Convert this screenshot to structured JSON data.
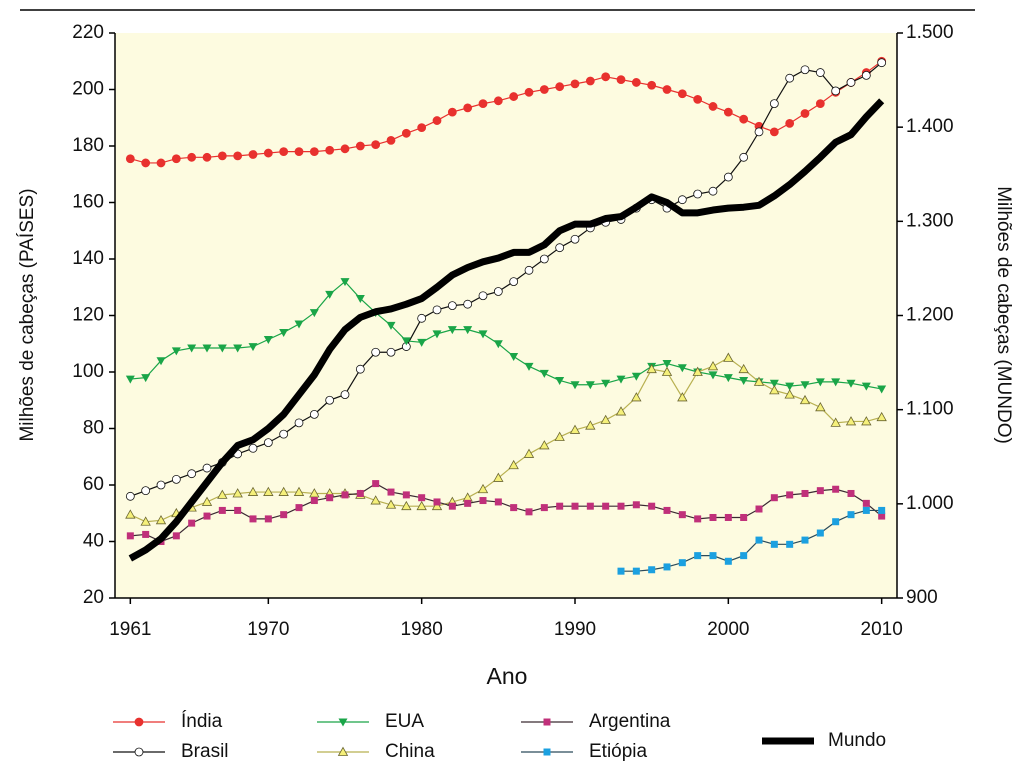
{
  "chart_data": {
    "type": "line",
    "x_label": "Ano",
    "y_label": "Milhões de cabeças (PAÍSES)",
    "y2_label": "Milhões de cabeças (MUNDO)",
    "x": [
      1961,
      1962,
      1963,
      1964,
      1965,
      1966,
      1967,
      1968,
      1969,
      1970,
      1971,
      1972,
      1973,
      1974,
      1975,
      1976,
      1977,
      1978,
      1979,
      1980,
      1981,
      1982,
      1983,
      1984,
      1985,
      1986,
      1987,
      1988,
      1989,
      1990,
      1991,
      1992,
      1993,
      1994,
      1995,
      1996,
      1997,
      1998,
      1999,
      2000,
      2001,
      2002,
      2003,
      2004,
      2005,
      2006,
      2007,
      2008,
      2009,
      2010
    ],
    "xlim": [
      1960,
      2011
    ],
    "xticks": [
      1961,
      1970,
      1980,
      1990,
      2000,
      2010
    ],
    "ylim": [
      20,
      220
    ],
    "yticks": [
      20,
      40,
      60,
      80,
      100,
      120,
      140,
      160,
      180,
      200,
      220
    ],
    "y2lim": [
      900,
      1500
    ],
    "y2ticks": [
      900,
      {
        "value": 1000,
        "label": "1.000"
      },
      {
        "value": 1100,
        "label": "1.100"
      },
      {
        "value": 1200,
        "label": "1.200"
      },
      {
        "value": 1300,
        "label": "1.300"
      },
      {
        "value": 1400,
        "label": "1.400"
      },
      {
        "value": 1500,
        "label": "1.500"
      }
    ],
    "legend": "bottom",
    "series": [
      {
        "name": "Índia",
        "color": "#e8312e",
        "marker": "circle",
        "marker_fill": "#e8312e",
        "line_width": 1.2,
        "values": [
          175.5,
          174,
          174,
          175.5,
          176,
          176,
          176.5,
          176.5,
          177,
          177.5,
          178,
          178,
          178,
          178.5,
          179,
          180,
          180.5,
          182,
          184.5,
          186.5,
          189,
          192,
          193.5,
          195,
          196,
          197.5,
          199,
          200,
          201,
          202,
          203,
          204.5,
          203.5,
          202.5,
          201.5,
          200,
          198.5,
          196.5,
          194,
          192,
          189.5,
          187,
          185,
          188,
          191.5,
          195,
          199,
          202.5,
          206,
          210
        ]
      },
      {
        "name": "Brasil",
        "color": "#111111",
        "marker": "circle",
        "marker_fill": "#ffffff",
        "line_width": 1.2,
        "values": [
          56,
          58,
          60,
          62,
          64,
          66,
          68,
          71,
          73,
          75,
          78,
          82,
          85,
          90,
          92,
          101,
          107,
          107,
          109,
          119,
          122,
          123.5,
          124,
          127,
          128.5,
          132,
          136,
          140,
          144,
          147,
          151,
          153,
          154,
          158,
          161,
          158,
          161,
          163,
          164,
          169,
          176,
          185,
          195,
          204,
          207,
          206,
          199.5,
          202.5,
          205,
          209.5
        ]
      },
      {
        "name": "EUA",
        "color": "#1aa548",
        "marker": "triangle-down",
        "marker_fill": "#1aa548",
        "line_width": 1.2,
        "values": [
          97.5,
          98,
          104,
          107.5,
          108.5,
          108.5,
          108.5,
          108.5,
          109,
          111.5,
          114,
          117,
          121,
          127.5,
          132,
          126,
          121,
          116.5,
          111,
          110.5,
          113.5,
          115,
          115,
          113.5,
          110,
          105.5,
          102,
          99.5,
          97,
          95.5,
          95.5,
          96,
          97.5,
          98.5,
          102,
          103,
          101.5,
          100,
          99,
          98,
          97,
          96.5,
          96,
          95,
          95.5,
          96.5,
          96.5,
          96,
          95,
          94
        ]
      },
      {
        "name": "China",
        "color": "#b8b050",
        "marker": "triangle-up",
        "marker_fill": "#f5f07a",
        "line_width": 1.2,
        "values": [
          49.5,
          47,
          47.5,
          50,
          52,
          54,
          56.5,
          57,
          57.5,
          57.5,
          57.5,
          57.5,
          57,
          57,
          57,
          56.5,
          54.5,
          53,
          52.5,
          52.5,
          52.5,
          54,
          55.5,
          58.5,
          62.5,
          67,
          71,
          74,
          77,
          79.5,
          81,
          83,
          86,
          91,
          101,
          100,
          91,
          100,
          102,
          105,
          101,
          96.5,
          93.5,
          92,
          90,
          87.5,
          82,
          82.5,
          82.5,
          84
        ]
      },
      {
        "name": "Argentina",
        "color": "#3a2a32",
        "marker": "square",
        "marker_fill": "#c0307a",
        "line_width": 1.2,
        "values": [
          42,
          42.5,
          40,
          42,
          46.5,
          49,
          51,
          51,
          48,
          48,
          49.5,
          52,
          54.5,
          55.5,
          56.5,
          57,
          60.5,
          57.5,
          56.5,
          55.5,
          54,
          52.5,
          53.5,
          54.5,
          54,
          52,
          50.5,
          52,
          52.5,
          52.5,
          52.5,
          52.5,
          52.5,
          53,
          52.5,
          51,
          49.5,
          48,
          48.5,
          48.5,
          48.5,
          51.5,
          55.5,
          56.5,
          57,
          58,
          58.5,
          57,
          53.5,
          49
        ]
      },
      {
        "name": "Etiópia",
        "color": "#2a4a5a",
        "marker": "square",
        "marker_fill": "#1ba0e0",
        "line_width": 1.2,
        "values": [
          null,
          null,
          null,
          null,
          null,
          null,
          null,
          null,
          null,
          null,
          null,
          null,
          null,
          null,
          null,
          null,
          null,
          null,
          null,
          null,
          null,
          null,
          null,
          null,
          null,
          null,
          null,
          null,
          null,
          null,
          null,
          null,
          29.5,
          29.5,
          30,
          31,
          32.5,
          35,
          35,
          33,
          35,
          40.5,
          39,
          39,
          40.5,
          43,
          47,
          49.5,
          51,
          51
        ]
      },
      {
        "name": "Mundo",
        "color": "#000000",
        "axis": "y2",
        "line_width": 7,
        "values": [
          942,
          951,
          963,
          981,
          1002,
          1023,
          1044,
          1062,
          1068,
          1080,
          1095,
          1116,
          1137,
          1164,
          1185,
          1198,
          1204,
          1207,
          1212,
          1218,
          1230,
          1243,
          1251,
          1257,
          1261,
          1267,
          1267,
          1275,
          1290,
          1297,
          1297,
          1303,
          1305,
          1315,
          1326,
          1320,
          1309,
          1309,
          1312,
          1314,
          1315,
          1317,
          1327,
          1339,
          1353,
          1368,
          1384,
          1392,
          1411,
          1428
        ]
      }
    ]
  }
}
